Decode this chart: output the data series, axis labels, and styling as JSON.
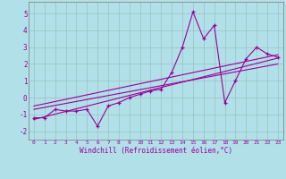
{
  "xlabel": "Windchill (Refroidissement éolien,°C)",
  "bg_color": "#b2e0e8",
  "line_color": "#990099",
  "grid_color": "#9bbfc7",
  "xlim": [
    -0.5,
    23.5
  ],
  "ylim": [
    -2.5,
    5.7
  ],
  "yticks": [
    -2,
    -1,
    0,
    1,
    2,
    3,
    4,
    5
  ],
  "xticks": [
    0,
    1,
    2,
    3,
    4,
    5,
    6,
    7,
    8,
    9,
    10,
    11,
    12,
    13,
    14,
    15,
    16,
    17,
    18,
    19,
    20,
    21,
    22,
    23
  ],
  "series": [
    [
      0,
      -1.2
    ],
    [
      1,
      -1.2
    ],
    [
      2,
      -0.7
    ],
    [
      3,
      -0.8
    ],
    [
      4,
      -0.8
    ],
    [
      5,
      -0.7
    ],
    [
      6,
      -1.7
    ],
    [
      7,
      -0.5
    ],
    [
      8,
      -0.3
    ],
    [
      9,
      0.0
    ],
    [
      10,
      0.2
    ],
    [
      11,
      0.4
    ],
    [
      12,
      0.5
    ],
    [
      13,
      1.5
    ],
    [
      14,
      3.0
    ],
    [
      15,
      5.1
    ],
    [
      16,
      3.5
    ],
    [
      17,
      4.3
    ],
    [
      18,
      -0.3
    ],
    [
      19,
      1.0
    ],
    [
      20,
      2.3
    ],
    [
      21,
      3.0
    ],
    [
      22,
      2.6
    ],
    [
      23,
      2.4
    ]
  ],
  "line1_x": [
    0,
    23
  ],
  "line1_y": [
    -1.3,
    2.35
  ],
  "line2_x": [
    0,
    23
  ],
  "line2_y": [
    -0.7,
    2.0
  ],
  "line3_x": [
    0,
    23
  ],
  "line3_y": [
    -0.5,
    2.55
  ]
}
